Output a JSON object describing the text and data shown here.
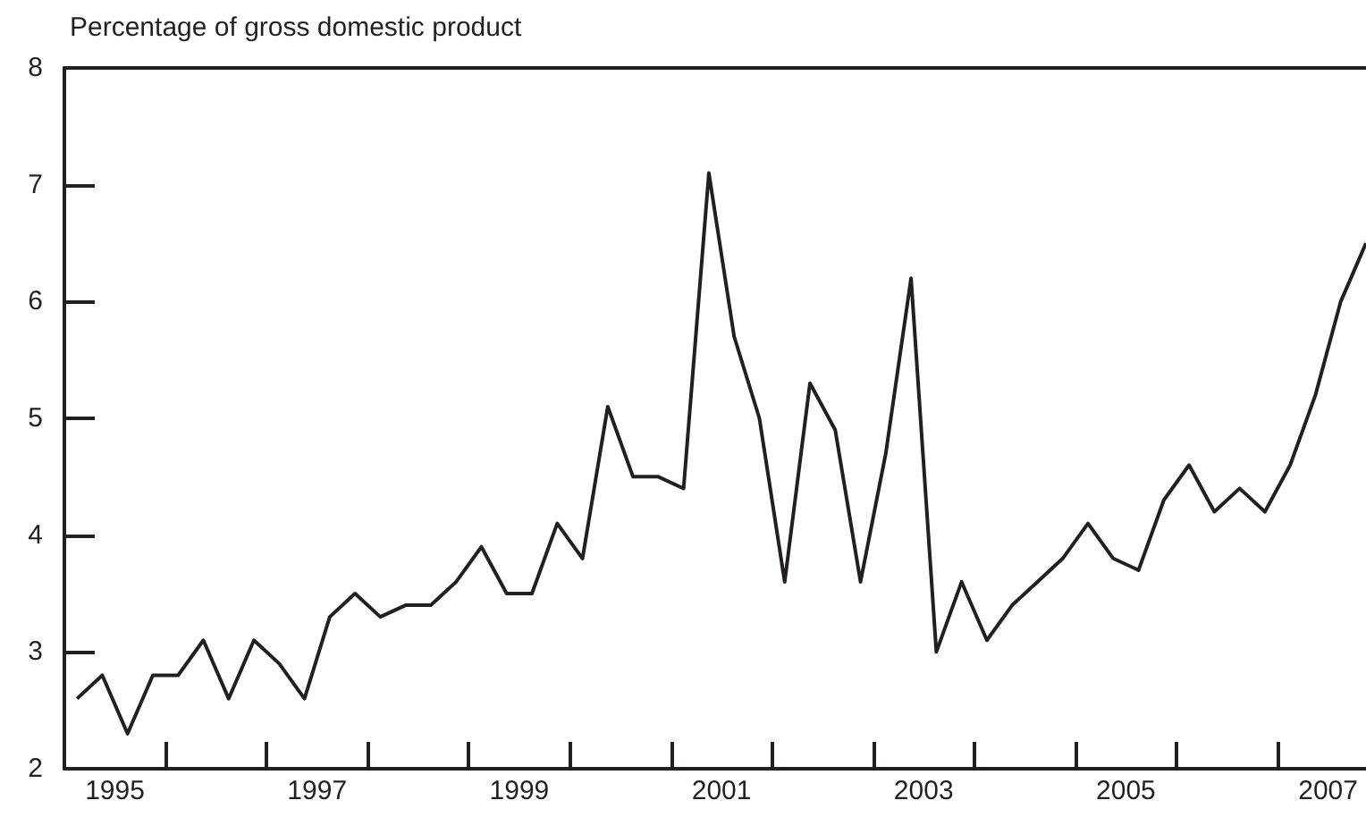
{
  "chart_data": {
    "type": "line",
    "ylabel": "Percentage of gross domestic product",
    "x": [
      1995.125,
      1995.375,
      1995.625,
      1995.875,
      1996.125,
      1996.375,
      1996.625,
      1996.875,
      1997.125,
      1997.375,
      1997.625,
      1997.875,
      1998.125,
      1998.375,
      1998.625,
      1998.875,
      1999.125,
      1999.375,
      1999.625,
      1999.875,
      2000.125,
      2000.375,
      2000.625,
      2000.875,
      2001.125,
      2001.375,
      2001.625,
      2001.875,
      2002.125,
      2002.375,
      2002.625,
      2002.875,
      2003.125,
      2003.375,
      2003.625,
      2003.875,
      2004.125,
      2004.375,
      2004.625,
      2004.875,
      2005.125,
      2005.375,
      2005.625,
      2005.875,
      2006.125,
      2006.375,
      2006.625,
      2006.875,
      2007.125,
      2007.375,
      2007.625,
      2007.875
    ],
    "series": [
      {
        "color": "#231f20",
        "values": [
          2.6,
          2.8,
          2.3,
          2.8,
          2.8,
          3.1,
          2.6,
          3.1,
          2.9,
          2.6,
          3.3,
          3.5,
          3.3,
          3.4,
          3.4,
          3.6,
          3.9,
          3.5,
          3.5,
          4.1,
          3.8,
          5.1,
          4.5,
          4.5,
          4.4,
          7.1,
          5.7,
          5.0,
          3.6,
          5.3,
          4.9,
          3.6,
          4.7,
          6.2,
          3.0,
          3.6,
          3.1,
          3.4,
          3.6,
          3.8,
          4.1,
          3.8,
          3.7,
          4.3,
          4.6,
          4.2,
          4.4,
          4.2,
          4.6,
          5.2,
          6.0,
          6.5
        ]
      }
    ],
    "xlim": [
      1995,
      2007.875
    ],
    "xticks": [
      {
        "value": 1995.5,
        "label": "1995"
      },
      {
        "value": 1996,
        "label": null
      },
      {
        "value": 1997,
        "label": null
      },
      {
        "value": 1997.5,
        "label": "1997"
      },
      {
        "value": 1998,
        "label": null
      },
      {
        "value": 1999,
        "label": null
      },
      {
        "value": 1999.5,
        "label": "1999"
      },
      {
        "value": 2000,
        "label": null
      },
      {
        "value": 2001,
        "label": null
      },
      {
        "value": 2001.5,
        "label": "2001"
      },
      {
        "value": 2002,
        "label": null
      },
      {
        "value": 2003,
        "label": null
      },
      {
        "value": 2003.5,
        "label": "2003"
      },
      {
        "value": 2004,
        "label": null
      },
      {
        "value": 2005,
        "label": null
      },
      {
        "value": 2005.5,
        "label": "2005"
      },
      {
        "value": 2006,
        "label": null
      },
      {
        "value": 2007,
        "label": null
      },
      {
        "value": 2007.5,
        "label": "2007"
      }
    ],
    "ylim": [
      2,
      8
    ],
    "yticks": [
      2,
      3,
      4,
      5,
      6,
      7,
      8
    ],
    "grid": false,
    "marker": "none",
    "line_style": "solid"
  }
}
